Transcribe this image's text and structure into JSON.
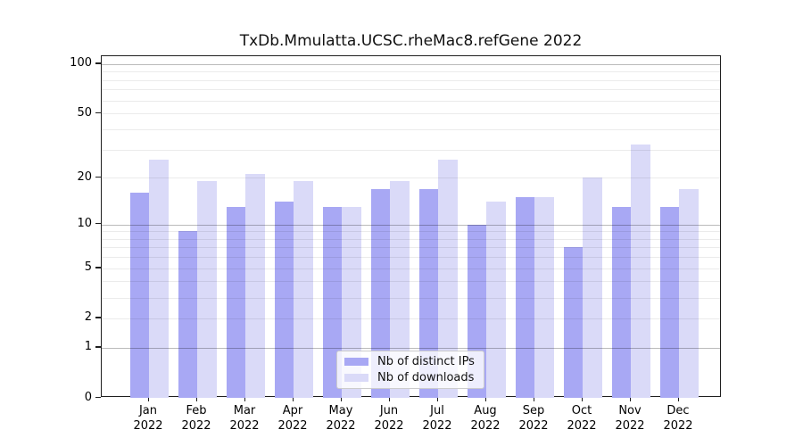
{
  "title": "TxDb.Mmulatta.UCSC.rheMac8.refGene 2022",
  "chart_data": {
    "type": "bar",
    "title": "TxDb.Mmulatta.UCSC.rheMac8.refGene 2022",
    "categories": [
      "Jan",
      "Feb",
      "Mar",
      "Apr",
      "May",
      "Jun",
      "Jul",
      "Aug",
      "Sep",
      "Oct",
      "Nov",
      "Dec"
    ],
    "category_year": "2022",
    "series": [
      {
        "name": "Nb of distinct IPs",
        "color": "#a8a8f4",
        "values": [
          16,
          9,
          13,
          14,
          13,
          17,
          17,
          10,
          15,
          7,
          13,
          13
        ]
      },
      {
        "name": "Nb of downloads",
        "color": "#dadaf8",
        "values": [
          26,
          19,
          21,
          19,
          13,
          19,
          26,
          14,
          15,
          20,
          32,
          17
        ]
      }
    ],
    "xlabel": "",
    "ylabel": "",
    "yscale": "log1p",
    "ylim": [
      0,
      112
    ],
    "yticks": [
      0,
      1,
      2,
      5,
      10,
      20,
      50,
      100
    ],
    "major_gridlines": [
      1,
      10,
      100
    ],
    "minor_gridlines": [
      2,
      3,
      4,
      5,
      6,
      7,
      8,
      9,
      20,
      30,
      40,
      50,
      60,
      70,
      80,
      90
    ],
    "grid": "on",
    "legend_position": "lower center"
  }
}
